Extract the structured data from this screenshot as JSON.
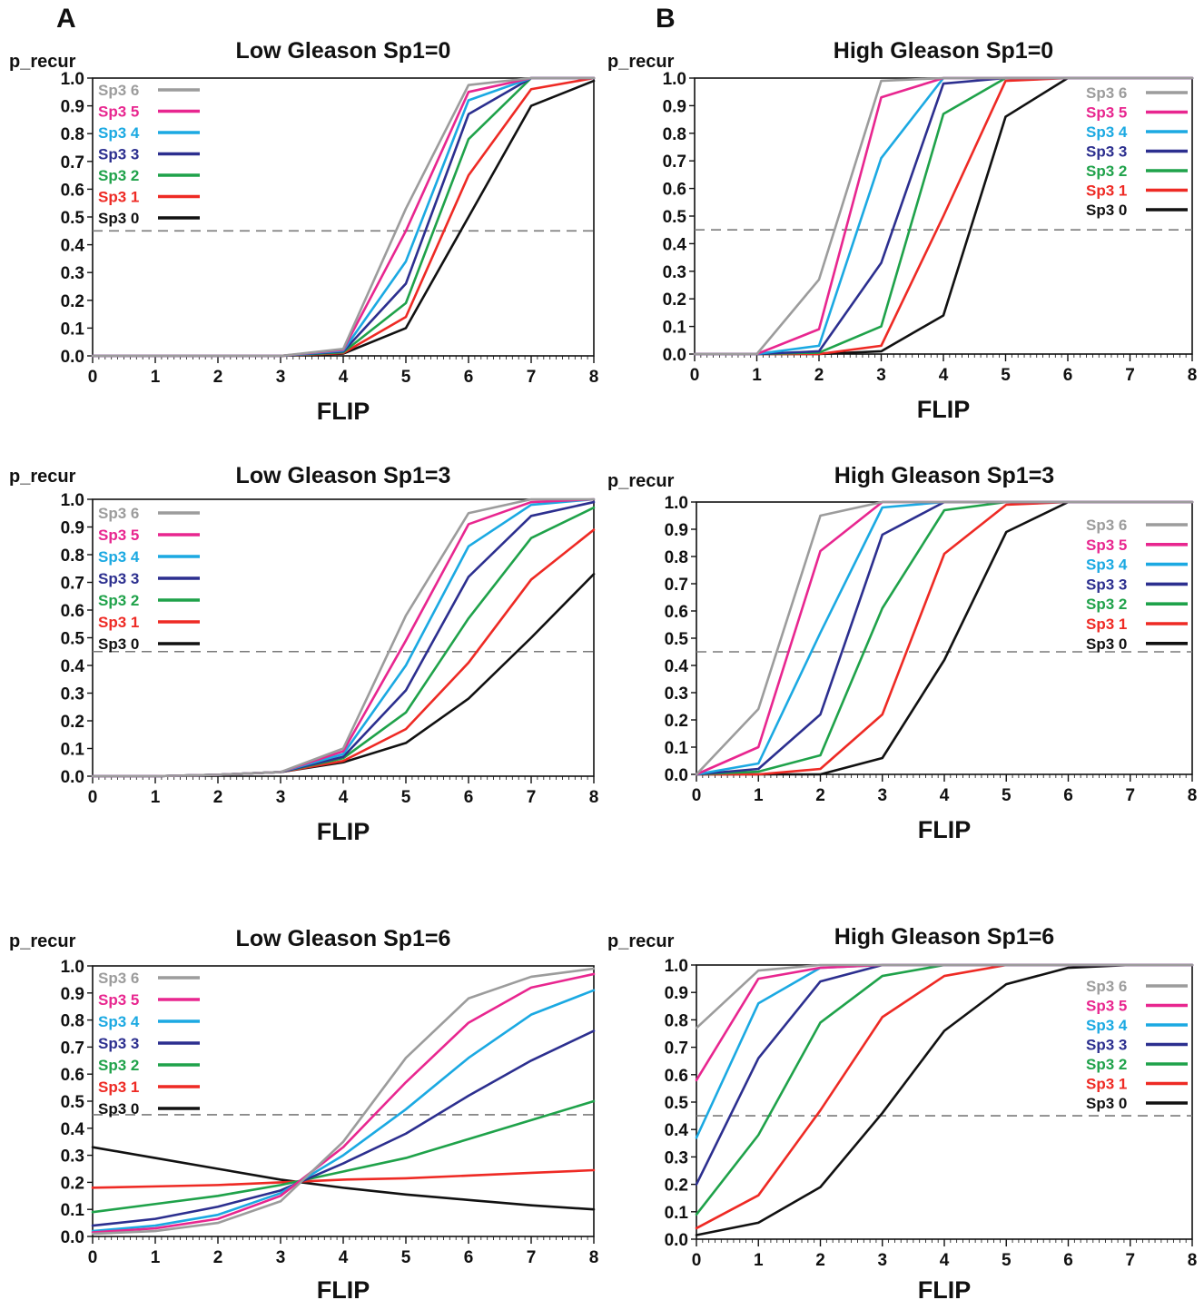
{
  "panel_letters": [
    "A",
    "B"
  ],
  "chart_data": [
    {
      "type": "line",
      "title": "Low Gleason Sp1=0",
      "xlabel": "FLIP",
      "ylabel": "p_recur",
      "x": [
        0,
        1,
        2,
        3,
        4,
        5,
        6,
        7,
        8
      ],
      "xlim": [
        0,
        8
      ],
      "ylim": [
        0,
        1.0
      ],
      "xticks": [
        "0",
        "1",
        "2",
        "3",
        "4",
        "5",
        "6",
        "7",
        "8"
      ],
      "yticks": [
        "0.0",
        "0.1",
        "0.2",
        "0.3",
        "0.4",
        "0.5",
        "0.6",
        "0.7",
        "0.8",
        "0.9",
        "1.0"
      ],
      "threshold": 0.45,
      "legend_position": "top-left",
      "series": [
        {
          "name": "Sp3 6",
          "color": "#9c9c9c",
          "values": [
            0,
            0,
            0,
            0,
            0.025,
            0.53,
            0.975,
            1.0,
            1.0
          ]
        },
        {
          "name": "Sp3 5",
          "color": "#e8268f",
          "values": [
            0,
            0,
            0,
            0,
            0.022,
            0.45,
            0.95,
            1.0,
            1.0
          ]
        },
        {
          "name": "Sp3 4",
          "color": "#1ba9e2",
          "values": [
            0,
            0,
            0,
            0,
            0.019,
            0.34,
            0.92,
            1.0,
            1.0
          ]
        },
        {
          "name": "Sp3 3",
          "color": "#2c2f8f",
          "values": [
            0,
            0,
            0,
            0,
            0.016,
            0.26,
            0.87,
            1.0,
            1.0
          ]
        },
        {
          "name": "Sp3 2",
          "color": "#1fa24a",
          "values": [
            0,
            0,
            0,
            0,
            0.013,
            0.19,
            0.78,
            1.0,
            1.0
          ]
        },
        {
          "name": "Sp3 1",
          "color": "#ee2a24",
          "values": [
            0,
            0,
            0,
            0,
            0.01,
            0.14,
            0.65,
            0.96,
            1.0
          ]
        },
        {
          "name": "Sp3 0",
          "color": "#111111",
          "values": [
            0,
            0,
            0,
            0,
            0.008,
            0.1,
            0.5,
            0.9,
            0.99
          ]
        }
      ]
    },
    {
      "type": "line",
      "title": "High Gleason Sp1=0",
      "xlabel": "FLIP",
      "ylabel": "p_recur",
      "x": [
        0,
        1,
        2,
        3,
        4,
        5,
        6,
        7,
        8
      ],
      "xlim": [
        0,
        8
      ],
      "ylim": [
        0,
        1.0
      ],
      "xticks": [
        "0",
        "1",
        "2",
        "3",
        "4",
        "5",
        "6",
        "7",
        "8"
      ],
      "yticks": [
        "0.0",
        "0.1",
        "0.2",
        "0.3",
        "0.4",
        "0.5",
        "0.6",
        "0.7",
        "0.8",
        "0.9",
        "1.0"
      ],
      "threshold": 0.45,
      "legend_position": "right",
      "series": [
        {
          "name": "Sp3 6",
          "color": "#9c9c9c",
          "values": [
            0,
            0,
            0.27,
            0.99,
            1.0,
            1.0,
            1.0,
            1.0,
            1.0
          ]
        },
        {
          "name": "Sp3 5",
          "color": "#e8268f",
          "values": [
            0,
            0,
            0.09,
            0.93,
            1.0,
            1.0,
            1.0,
            1.0,
            1.0
          ]
        },
        {
          "name": "Sp3 4",
          "color": "#1ba9e2",
          "values": [
            0,
            0,
            0.03,
            0.71,
            1.0,
            1.0,
            1.0,
            1.0,
            1.0
          ]
        },
        {
          "name": "Sp3 3",
          "color": "#2c2f8f",
          "values": [
            0,
            0,
            0.01,
            0.33,
            0.98,
            1.0,
            1.0,
            1.0,
            1.0
          ]
        },
        {
          "name": "Sp3 2",
          "color": "#1fa24a",
          "values": [
            0,
            0,
            0.005,
            0.1,
            0.87,
            1.0,
            1.0,
            1.0,
            1.0
          ]
        },
        {
          "name": "Sp3 1",
          "color": "#ee2a24",
          "values": [
            0,
            0,
            0,
            0.03,
            0.5,
            0.99,
            1.0,
            1.0,
            1.0
          ]
        },
        {
          "name": "Sp3 0",
          "color": "#111111",
          "values": [
            0,
            0,
            0,
            0.01,
            0.14,
            0.86,
            1.0,
            1.0,
            1.0
          ]
        }
      ]
    },
    {
      "type": "line",
      "title": "Low Gleason Sp1=3",
      "xlabel": "FLIP",
      "ylabel": "p_recur",
      "x": [
        0,
        1,
        2,
        3,
        4,
        5,
        6,
        7,
        8
      ],
      "xlim": [
        0,
        8
      ],
      "ylim": [
        0,
        1.0
      ],
      "xticks": [
        "0",
        "1",
        "2",
        "3",
        "4",
        "5",
        "6",
        "7",
        "8"
      ],
      "yticks": [
        "0.0",
        "0.1",
        "0.2",
        "0.3",
        "0.4",
        "0.5",
        "0.6",
        "0.7",
        "0.8",
        "0.9",
        "1.0"
      ],
      "threshold": 0.45,
      "legend_position": "top-left",
      "series": [
        {
          "name": "Sp3 6",
          "color": "#9c9c9c",
          "values": [
            0,
            0,
            0.005,
            0.015,
            0.1,
            0.58,
            0.95,
            1.0,
            1.0
          ]
        },
        {
          "name": "Sp3 5",
          "color": "#e8268f",
          "values": [
            0,
            0,
            0.005,
            0.015,
            0.09,
            0.49,
            0.91,
            0.99,
            1.0
          ]
        },
        {
          "name": "Sp3 4",
          "color": "#1ba9e2",
          "values": [
            0,
            0,
            0.005,
            0.015,
            0.08,
            0.4,
            0.83,
            0.98,
            1.0
          ]
        },
        {
          "name": "Sp3 3",
          "color": "#2c2f8f",
          "values": [
            0,
            0,
            0.005,
            0.015,
            0.07,
            0.31,
            0.72,
            0.94,
            0.99
          ]
        },
        {
          "name": "Sp3 2",
          "color": "#1fa24a",
          "values": [
            0,
            0,
            0.005,
            0.015,
            0.065,
            0.23,
            0.57,
            0.86,
            0.97
          ]
        },
        {
          "name": "Sp3 1",
          "color": "#ee2a24",
          "values": [
            0,
            0,
            0.005,
            0.015,
            0.055,
            0.17,
            0.41,
            0.71,
            0.89
          ]
        },
        {
          "name": "Sp3 0",
          "color": "#111111",
          "values": [
            0,
            0,
            0.005,
            0.015,
            0.05,
            0.12,
            0.28,
            0.5,
            0.73
          ]
        }
      ]
    },
    {
      "type": "line",
      "title": "High Gleason Sp1=3",
      "xlabel": "FLIP",
      "ylabel": "p_recur",
      "x": [
        0,
        1,
        2,
        3,
        4,
        5,
        6,
        7,
        8
      ],
      "xlim": [
        0,
        8
      ],
      "ylim": [
        0,
        1.0
      ],
      "xticks": [
        "0",
        "1",
        "2",
        "3",
        "4",
        "5",
        "6",
        "7",
        "8"
      ],
      "yticks": [
        "0.0",
        "0.1",
        "0.2",
        "0.3",
        "0.4",
        "0.5",
        "0.6",
        "0.7",
        "0.8",
        "0.9",
        "1.0"
      ],
      "threshold": 0.45,
      "legend_position": "right",
      "series": [
        {
          "name": "Sp3 6",
          "color": "#9c9c9c",
          "values": [
            0,
            0.24,
            0.95,
            1.0,
            1.0,
            1.0,
            1.0,
            1.0,
            1.0
          ]
        },
        {
          "name": "Sp3 5",
          "color": "#e8268f",
          "values": [
            0,
            0.1,
            0.82,
            1.0,
            1.0,
            1.0,
            1.0,
            1.0,
            1.0
          ]
        },
        {
          "name": "Sp3 4",
          "color": "#1ba9e2",
          "values": [
            0,
            0.04,
            0.52,
            0.98,
            1.0,
            1.0,
            1.0,
            1.0,
            1.0
          ]
        },
        {
          "name": "Sp3 3",
          "color": "#2c2f8f",
          "values": [
            0,
            0.02,
            0.22,
            0.88,
            1.0,
            1.0,
            1.0,
            1.0,
            1.0
          ]
        },
        {
          "name": "Sp3 2",
          "color": "#1fa24a",
          "values": [
            0,
            0.01,
            0.07,
            0.61,
            0.97,
            1.0,
            1.0,
            1.0,
            1.0
          ]
        },
        {
          "name": "Sp3 1",
          "color": "#ee2a24",
          "values": [
            0,
            0,
            0.02,
            0.22,
            0.81,
            0.99,
            1.0,
            1.0,
            1.0
          ]
        },
        {
          "name": "Sp3 0",
          "color": "#111111",
          "values": [
            0,
            0,
            0,
            0.06,
            0.42,
            0.89,
            1.0,
            1.0,
            1.0
          ]
        }
      ]
    },
    {
      "type": "line",
      "title": "Low Gleason Sp1=6",
      "xlabel": "FLIP",
      "ylabel": "p_recur",
      "x": [
        0,
        1,
        2,
        3,
        4,
        5,
        6,
        7,
        8
      ],
      "xlim": [
        0,
        8
      ],
      "ylim": [
        0,
        1.0
      ],
      "xticks": [
        "0",
        "1",
        "2",
        "3",
        "4",
        "5",
        "6",
        "7",
        "8"
      ],
      "yticks": [
        "0.0",
        "0.1",
        "0.2",
        "0.3",
        "0.4",
        "0.5",
        "0.6",
        "0.7",
        "0.8",
        "0.9",
        "1.0"
      ],
      "threshold": 0.45,
      "legend_position": "top-left",
      "series": [
        {
          "name": "Sp3 6",
          "color": "#9c9c9c",
          "values": [
            0.01,
            0.02,
            0.05,
            0.13,
            0.35,
            0.66,
            0.88,
            0.96,
            0.99
          ]
        },
        {
          "name": "Sp3 5",
          "color": "#e8268f",
          "values": [
            0.015,
            0.03,
            0.065,
            0.15,
            0.33,
            0.57,
            0.79,
            0.92,
            0.97
          ]
        },
        {
          "name": "Sp3 4",
          "color": "#1ba9e2",
          "values": [
            0.02,
            0.04,
            0.08,
            0.16,
            0.3,
            0.47,
            0.66,
            0.82,
            0.91
          ]
        },
        {
          "name": "Sp3 3",
          "color": "#2c2f8f",
          "values": [
            0.04,
            0.065,
            0.11,
            0.17,
            0.27,
            0.38,
            0.52,
            0.65,
            0.76
          ]
        },
        {
          "name": "Sp3 2",
          "color": "#1fa24a",
          "values": [
            0.09,
            0.12,
            0.15,
            0.19,
            0.24,
            0.29,
            0.36,
            0.43,
            0.5
          ]
        },
        {
          "name": "Sp3 1",
          "color": "#ee2a24",
          "values": [
            0.18,
            0.185,
            0.19,
            0.2,
            0.21,
            0.215,
            0.225,
            0.235,
            0.245
          ]
        },
        {
          "name": "Sp3 0",
          "color": "#111111",
          "values": [
            0.33,
            0.29,
            0.25,
            0.21,
            0.18,
            0.155,
            0.135,
            0.115,
            0.1
          ]
        }
      ]
    },
    {
      "type": "line",
      "title": "High Gleason Sp1=6",
      "xlabel": "FLIP",
      "ylabel": "p_recur",
      "x": [
        0,
        1,
        2,
        3,
        4,
        5,
        6,
        7,
        8
      ],
      "xlim": [
        0,
        8
      ],
      "ylim": [
        0,
        1.0
      ],
      "xticks": [
        "0",
        "1",
        "2",
        "3",
        "4",
        "5",
        "6",
        "7",
        "8"
      ],
      "yticks": [
        "0.0",
        "0.1",
        "0.2",
        "0.3",
        "0.4",
        "0.5",
        "0.6",
        "0.7",
        "0.8",
        "0.9",
        "1.0"
      ],
      "threshold": 0.45,
      "legend_position": "right",
      "series": [
        {
          "name": "Sp3 6",
          "color": "#9c9c9c",
          "values": [
            0.77,
            0.98,
            1.0,
            1.0,
            1.0,
            1.0,
            1.0,
            1.0,
            1.0
          ]
        },
        {
          "name": "Sp3 5",
          "color": "#e8268f",
          "values": [
            0.58,
            0.95,
            0.99,
            1.0,
            1.0,
            1.0,
            1.0,
            1.0,
            1.0
          ]
        },
        {
          "name": "Sp3 4",
          "color": "#1ba9e2",
          "values": [
            0.37,
            0.86,
            0.99,
            1.0,
            1.0,
            1.0,
            1.0,
            1.0,
            1.0
          ]
        },
        {
          "name": "Sp3 3",
          "color": "#2c2f8f",
          "values": [
            0.2,
            0.66,
            0.94,
            1.0,
            1.0,
            1.0,
            1.0,
            1.0,
            1.0
          ]
        },
        {
          "name": "Sp3 2",
          "color": "#1fa24a",
          "values": [
            0.09,
            0.38,
            0.79,
            0.96,
            1.0,
            1.0,
            1.0,
            1.0,
            1.0
          ]
        },
        {
          "name": "Sp3 1",
          "color": "#ee2a24",
          "values": [
            0.04,
            0.16,
            0.47,
            0.81,
            0.96,
            1.0,
            1.0,
            1.0,
            1.0
          ]
        },
        {
          "name": "Sp3 0",
          "color": "#111111",
          "values": [
            0.015,
            0.06,
            0.19,
            0.46,
            0.76,
            0.93,
            0.99,
            1.0,
            1.0
          ]
        }
      ]
    }
  ]
}
